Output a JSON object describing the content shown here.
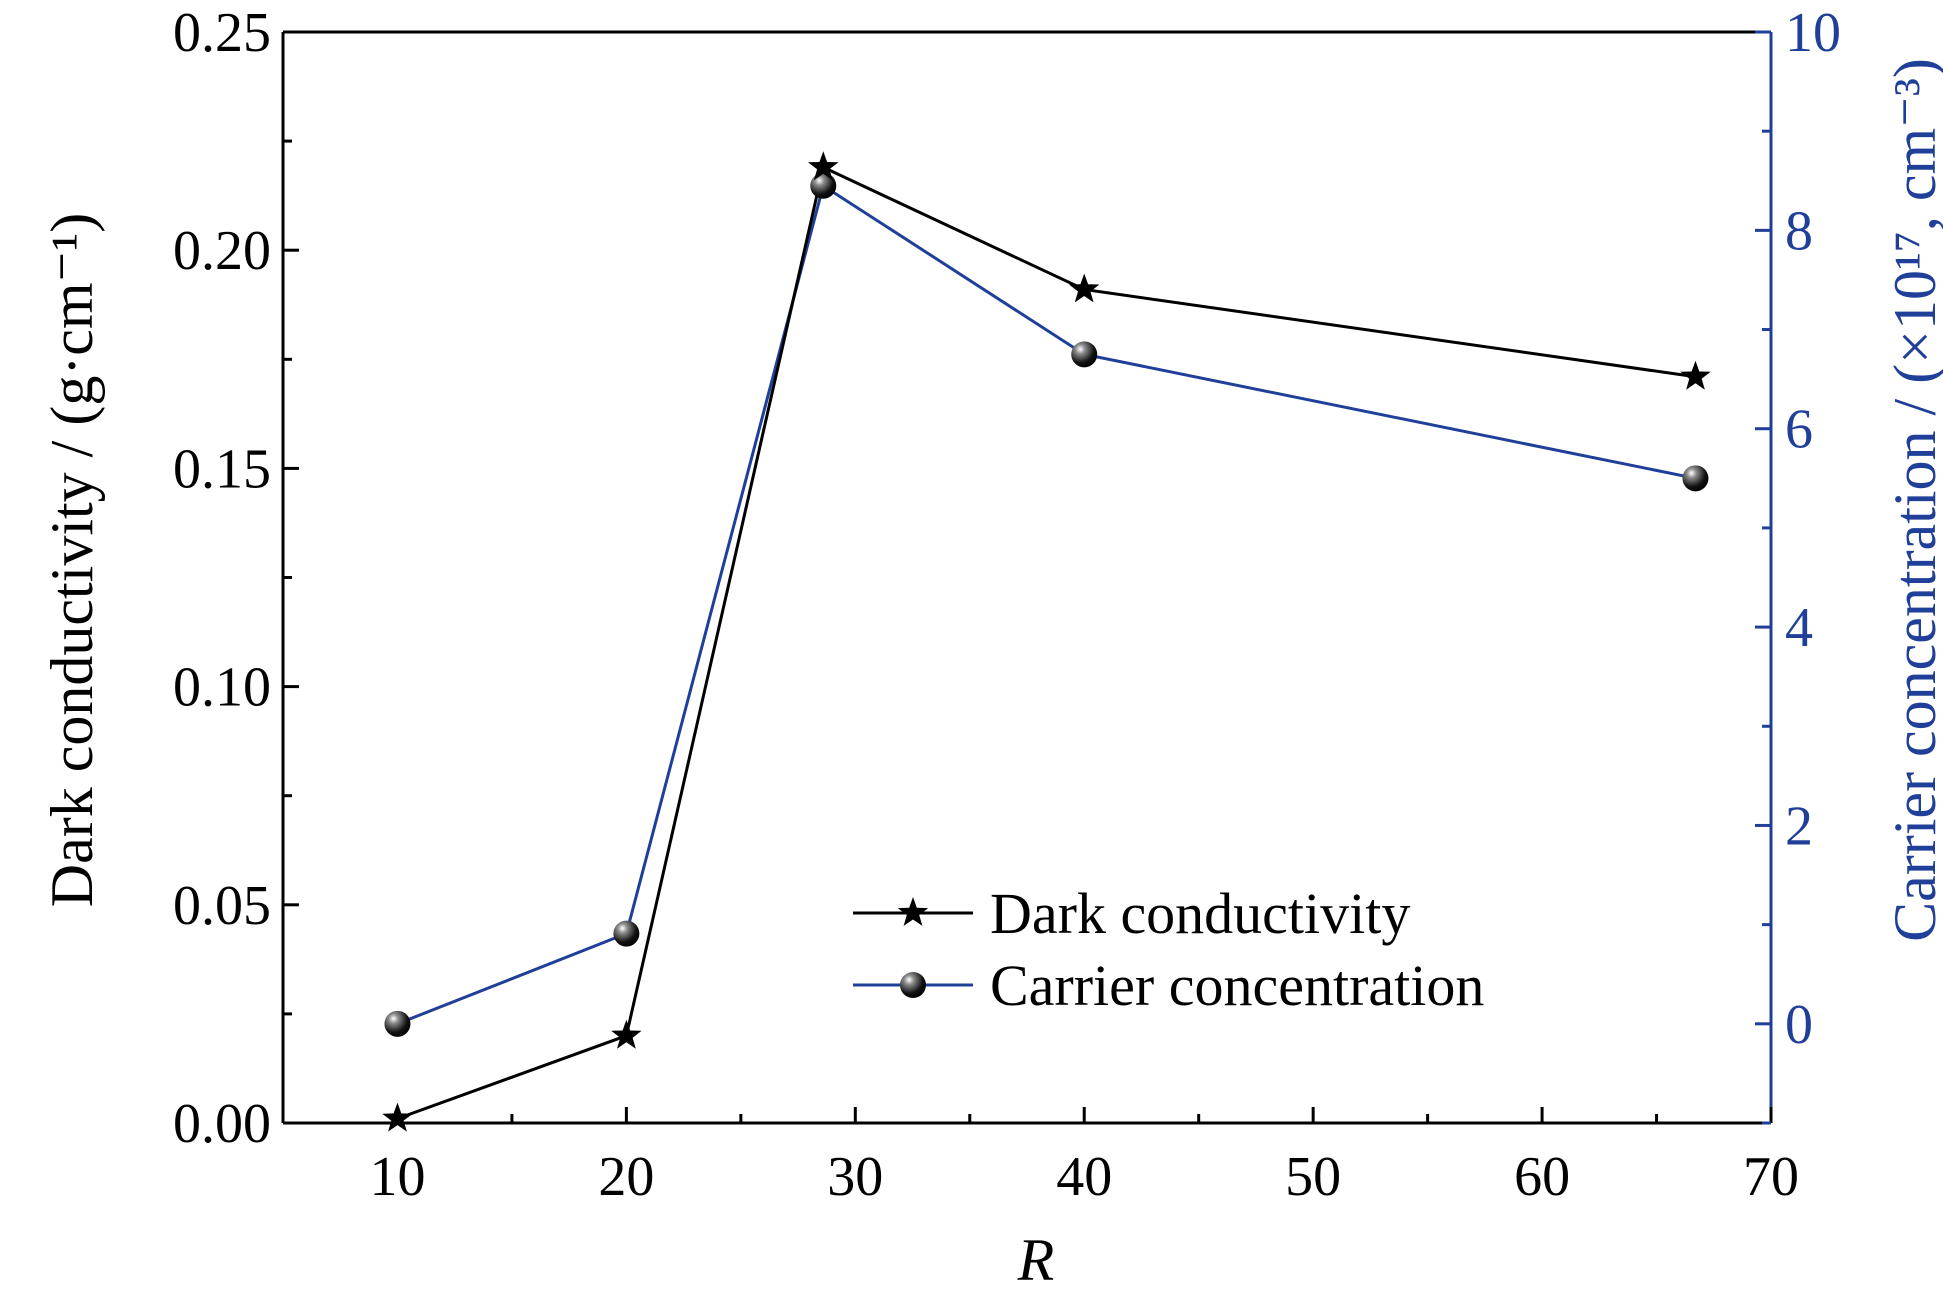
{
  "chart_data": {
    "type": "line",
    "xlabel": "R",
    "ylabel_left": "Dark conductivity / (g·cm⁻¹)",
    "ylabel_right": "Carrier concentration / (×10¹⁷, cm⁻³)",
    "xlim": [
      5,
      70
    ],
    "ylim_left": [
      0,
      0.25
    ],
    "ylim_right": [
      -1,
      10
    ],
    "x_ticks": [
      "10",
      "20",
      "30",
      "40",
      "50",
      "60",
      "70"
    ],
    "y_left_ticks": [
      "0.00",
      "0.05",
      "0.10",
      "0.15",
      "0.20",
      "0.25"
    ],
    "y_right_ticks": [
      "0",
      "2",
      "4",
      "6",
      "8",
      "10"
    ],
    "grid": false,
    "legend_position": "bottom-center",
    "colors": {
      "left_axis": "#000000",
      "right_axis": "#1f3f99",
      "dark_series": "#000000",
      "carrier_series": "#1f3f99"
    },
    "series": [
      {
        "name": "Dark conductivity",
        "axis": "left",
        "marker": "star",
        "x": [
          10,
          20,
          28.6,
          40,
          66.7
        ],
        "values": [
          0.001,
          0.02,
          0.219,
          0.191,
          0.171
        ]
      },
      {
        "name": "Carrier concentration",
        "axis": "right",
        "marker": "ball",
        "x": [
          10,
          20,
          28.6,
          40,
          66.7
        ],
        "values": [
          0.0,
          0.91,
          8.45,
          6.75,
          5.5
        ]
      }
    ]
  }
}
